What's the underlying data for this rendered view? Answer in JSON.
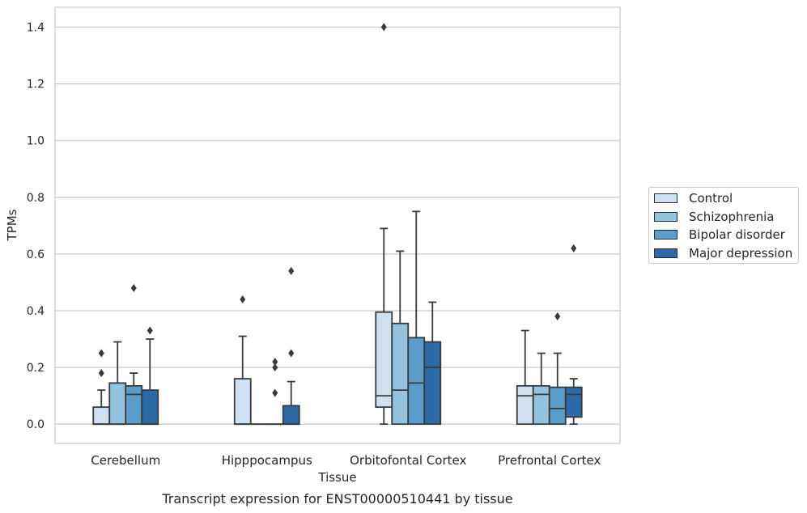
{
  "chart_data": {
    "type": "box",
    "title": "",
    "caption": "Transcript expression for ENST00000510441 by tissue",
    "xlabel": "Tissue",
    "ylabel": "TPMs",
    "ylim": [
      -0.068,
      1.47
    ],
    "yticks": [
      "0.0",
      "0.2",
      "0.4",
      "0.6",
      "0.8",
      "1.0",
      "1.2",
      "1.4"
    ],
    "ytick_values": [
      0,
      0.2,
      0.4,
      0.6,
      0.8,
      1.0,
      1.2,
      1.4
    ],
    "grid": "horizontal",
    "legend_position": "right",
    "categories": [
      "Cerebellum",
      "Hipppocampus",
      "Orbitofontal Cortex",
      "Prefrontal Cortex"
    ],
    "series": [
      {
        "name": "Control",
        "color": "#cfe0f0",
        "boxes": [
          {
            "q1": 0.0,
            "median": 0.0,
            "q3": 0.06,
            "whisker_low": 0.0,
            "whisker_high": 0.12,
            "outliers": [
              0.18,
              0.25
            ]
          },
          {
            "q1": 0.0,
            "median": 0.0,
            "q3": 0.16,
            "whisker_low": 0.0,
            "whisker_high": 0.31,
            "outliers": [
              0.44
            ]
          },
          {
            "q1": 0.06,
            "median": 0.1,
            "q3": 0.395,
            "whisker_low": 0.0,
            "whisker_high": 0.69,
            "outliers": [
              1.4
            ]
          },
          {
            "q1": 0.0,
            "median": 0.1,
            "q3": 0.135,
            "whisker_low": 0.0,
            "whisker_high": 0.33,
            "outliers": []
          }
        ]
      },
      {
        "name": "Schizophrenia",
        "color": "#93c3df",
        "boxes": [
          {
            "q1": 0.0,
            "median": 0.0,
            "q3": 0.145,
            "whisker_low": 0.0,
            "whisker_high": 0.29,
            "outliers": []
          },
          {
            "q1": 0.0,
            "median": 0.0,
            "q3": 0.0,
            "whisker_low": 0.0,
            "whisker_high": 0.0,
            "outliers": []
          },
          {
            "q1": 0.0,
            "median": 0.12,
            "q3": 0.355,
            "whisker_low": 0.0,
            "whisker_high": 0.61,
            "outliers": []
          },
          {
            "q1": 0.0,
            "median": 0.105,
            "q3": 0.135,
            "whisker_low": 0.0,
            "whisker_high": 0.25,
            "outliers": []
          }
        ]
      },
      {
        "name": "Bipolar disorder",
        "color": "#5a9dca",
        "boxes": [
          {
            "q1": 0.0,
            "median": 0.105,
            "q3": 0.135,
            "whisker_low": 0.0,
            "whisker_high": 0.18,
            "outliers": [
              0.48
            ]
          },
          {
            "q1": 0.0,
            "median": 0.0,
            "q3": 0.0,
            "whisker_low": 0.0,
            "whisker_high": 0.0,
            "outliers": [
              0.11,
              0.2,
              0.22
            ]
          },
          {
            "q1": 0.0,
            "median": 0.145,
            "q3": 0.305,
            "whisker_low": 0.0,
            "whisker_high": 0.75,
            "outliers": []
          },
          {
            "q1": 0.0,
            "median": 0.055,
            "q3": 0.13,
            "whisker_low": 0.0,
            "whisker_high": 0.25,
            "outliers": [
              0.38
            ]
          }
        ]
      },
      {
        "name": "Major depression",
        "color": "#2b6aa6",
        "boxes": [
          {
            "q1": 0.0,
            "median": 0.0,
            "q3": 0.12,
            "whisker_low": 0.0,
            "whisker_high": 0.3,
            "outliers": [
              0.33
            ]
          },
          {
            "q1": 0.0,
            "median": 0.0,
            "q3": 0.065,
            "whisker_low": 0.0,
            "whisker_high": 0.15,
            "outliers": [
              0.25,
              0.54
            ]
          },
          {
            "q1": 0.0,
            "median": 0.2,
            "q3": 0.29,
            "whisker_low": 0.0,
            "whisker_high": 0.43,
            "outliers": []
          },
          {
            "q1": 0.025,
            "median": 0.105,
            "q3": 0.13,
            "whisker_low": 0.0,
            "whisker_high": 0.16,
            "outliers": [
              0.62
            ]
          }
        ]
      }
    ]
  }
}
